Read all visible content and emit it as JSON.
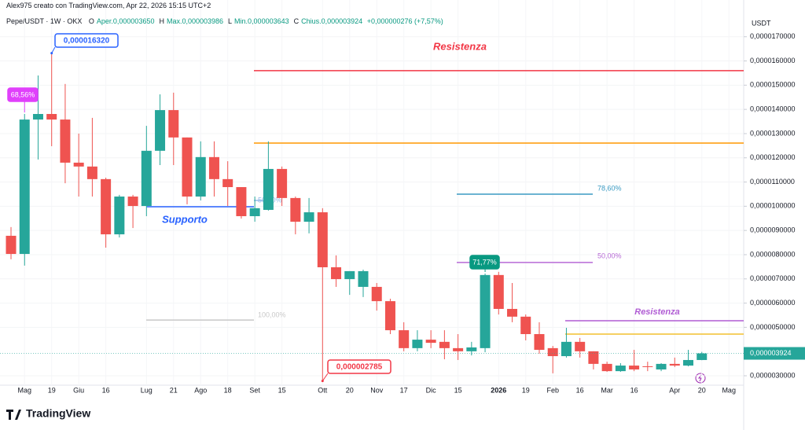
{
  "header": {
    "credit": "Alex975 creato con TradingView.com, Apr 22, 2026 15:15 UTC+2",
    "symbol": "Pepe/USDT · 1W · OKX",
    "ohlc": [
      {
        "key": "O",
        "text": "Aper.0,000003650"
      },
      {
        "key": "H",
        "text": "Max.0,000003986"
      },
      {
        "key": "L",
        "text": "Min.0,000003643"
      },
      {
        "key": "C",
        "text": "Chius.0,000003924"
      }
    ],
    "change": "+0,000000276 (+7,57%)"
  },
  "logo": "TradingView",
  "chart_data": {
    "type": "candlestick",
    "y_axis_label": "USDT",
    "up_color": "#26a69a",
    "down_color": "#ef5350",
    "categories": [
      null,
      "Mag",
      null,
      "19",
      null,
      "Giu",
      null,
      "16",
      null,
      null,
      "Lug",
      null,
      "21",
      null,
      "Ago",
      null,
      "18",
      null,
      "Set",
      null,
      "15",
      null,
      null,
      "Ott",
      null,
      "20",
      null,
      "Nov",
      null,
      "17",
      null,
      "Dic",
      null,
      "15",
      null,
      null,
      "2026",
      null,
      "19",
      null,
      "Feb",
      null,
      "16",
      null,
      "Mar",
      null,
      "16",
      null,
      null,
      "Apr",
      null,
      "20",
      null,
      "Mag"
    ],
    "open": [
      8.78e-06,
      8.03e-06,
      1.358e-05,
      1.381e-05,
      1.358e-05,
      1.18e-05,
      1.164e-05,
      1.112e-05,
      8.84e-06,
      1.04e-05,
      1.001e-05,
      1.229e-05,
      1.397e-05,
      1.284e-05,
      1.04e-05,
      1.203e-05,
      1.112e-05,
      1.079e-05,
      9.59e-06,
      9.85e-06,
      1.154e-05,
      1.034e-05,
      9.36e-06,
      9.75e-06,
      7.48e-06,
      6.99e-06,
      6.67e-06,
      6.67e-06,
      6.08e-06,
      4.88e-06,
      4.14e-06,
      4.49e-06,
      4.4e-06,
      4.14e-06,
      4.01e-06,
      4.14e-06,
      7.16e-06,
      5.76e-06,
      5.44e-06,
      4.72e-06,
      4.14e-06,
      3.81e-06,
      4.4e-06,
      4.01e-06,
      3.49e-06,
      3.19e-06,
      3.42e-06,
      3.39e-06,
      3.26e-06,
      3.49e-06,
      3.42e-06,
      3.65e-06,
      null,
      null
    ],
    "high": [
      9.14e-06,
      1.381e-05,
      1.54e-05,
      1.632e-05,
      1.505e-05,
      1.3e-05,
      1.365e-05,
      1.118e-05,
      1.047e-05,
      1.047e-05,
      1.332e-05,
      1.462e-05,
      1.469e-05,
      1.284e-05,
      1.268e-05,
      1.268e-05,
      1.186e-05,
      1.079e-05,
      1.04e-05,
      1.268e-05,
      1.164e-05,
      1.04e-05,
      1.034e-05,
      9.92e-06,
      7.97e-06,
      7.32e-06,
      7.38e-06,
      6.83e-06,
      6.18e-06,
      5.21e-06,
      4.88e-06,
      4.88e-06,
      4.88e-06,
      4.72e-06,
      4.4e-06,
      7.22e-06,
      7.29e-06,
      6.83e-06,
      5.53e-06,
      5.21e-06,
      4.23e-06,
      4.98e-06,
      4.56e-06,
      4.01e-06,
      3.58e-06,
      3.52e-06,
      4.07e-06,
      3.58e-06,
      3.52e-06,
      3.75e-06,
      4.07e-06,
      3.986e-06,
      null,
      null
    ],
    "low": [
      7.81e-06,
      7.55e-06,
      1.193e-05,
      1.248e-05,
      1.095e-05,
      1.04e-05,
      1.04e-05,
      8.29e-06,
      8.71e-06,
      9.1e-06,
      9.59e-06,
      1.17e-05,
      1.17e-05,
      1.008e-05,
      1.024e-05,
      1.04e-05,
      1.001e-05,
      9.49e-06,
      9.36e-06,
      9.82e-06,
      1.001e-05,
      8.84e-06,
      8.88e-06,
      2.785e-06,
      6.67e-06,
      6.34e-06,
      6.25e-06,
      5.69e-06,
      4.72e-06,
      4.01e-06,
      4.01e-06,
      4.14e-06,
      3.68e-06,
      3.65e-06,
      3.84e-06,
      3.97e-06,
      5.53e-06,
      5.21e-06,
      4.46e-06,
      3.91e-06,
      3.1e-06,
      3.75e-06,
      3.75e-06,
      3.26e-06,
      3.16e-06,
      3.16e-06,
      3.19e-06,
      3.19e-06,
      3.19e-06,
      3.36e-06,
      3.39e-06,
      3.643e-06,
      null,
      null
    ],
    "close": [
      8.03e-06,
      1.358e-05,
      1.381e-05,
      1.358e-05,
      1.18e-05,
      1.164e-05,
      1.112e-05,
      8.84e-06,
      1.04e-05,
      1.001e-05,
      1.229e-05,
      1.397e-05,
      1.284e-05,
      1.04e-05,
      1.203e-05,
      1.112e-05,
      1.079e-05,
      9.59e-06,
      9.92e-06,
      1.154e-05,
      1.034e-05,
      9.36e-06,
      9.75e-06,
      7.48e-06,
      6.99e-06,
      7.32e-06,
      7.32e-06,
      6.08e-06,
      4.88e-06,
      4.14e-06,
      4.49e-06,
      4.36e-06,
      4.14e-06,
      4.01e-06,
      4.17e-06,
      7.16e-06,
      5.76e-06,
      5.44e-06,
      4.72e-06,
      4.07e-06,
      3.81e-06,
      4.4e-06,
      4.01e-06,
      3.49e-06,
      3.19e-06,
      3.42e-06,
      3.26e-06,
      3.36e-06,
      3.49e-06,
      3.42e-06,
      3.65e-06,
      3.924e-06,
      null,
      null
    ],
    "ylim": [
      2.61e-06,
      1.803e-05
    ],
    "yticks": [
      {
        "value": 3e-06,
        "label": "0,0000030000"
      },
      {
        "value": 5e-06,
        "label": "0,0000050000"
      },
      {
        "value": 6e-06,
        "label": "0,0000060000"
      },
      {
        "value": 7e-06,
        "label": "0,0000070000"
      },
      {
        "value": 8e-06,
        "label": "0,0000080000"
      },
      {
        "value": 9e-06,
        "label": "0,0000090000"
      },
      {
        "value": 1e-05,
        "label": "0,0000100000"
      },
      {
        "value": 1.1e-05,
        "label": "0,0000110000"
      },
      {
        "value": 1.2e-05,
        "label": "0,0000120000"
      },
      {
        "value": 1.3e-05,
        "label": "0,0000130000"
      },
      {
        "value": 1.4e-05,
        "label": "0,0000140000"
      },
      {
        "value": 1.5e-05,
        "label": "0,0000150000"
      },
      {
        "value": 1.6e-05,
        "label": "0,0000160000"
      },
      {
        "value": 1.7e-05,
        "label": "0,0000170000"
      }
    ],
    "grid": true,
    "last_price": {
      "value": 3.924e-06,
      "label": "0,000003924"
    },
    "lines": [
      {
        "value": 1.56e-05,
        "color": "#f23645",
        "label": "Resistenza"
      },
      {
        "value": 1.261e-05,
        "color": "#ff9800"
      },
      {
        "value": 9.98e-06,
        "color": "#2962ff",
        "label": "Supporto"
      },
      {
        "value": 1.05e-05,
        "color": "#3a9ac2",
        "label": "78,60%"
      },
      {
        "value": 7.68e-06,
        "color": "#b76ad6",
        "label": "50,00%"
      },
      {
        "value": 5.3e-06,
        "color": "#c8c8c8",
        "label": "100,00%"
      },
      {
        "value": 1.024e-05,
        "color": "#8fb8e8",
        "label": "50,00%"
      },
      {
        "value": 5.27e-06,
        "color": "#b05cd4",
        "label": "Resistenza"
      },
      {
        "value": 4.72e-06,
        "color": "#f2c12e"
      }
    ],
    "callouts": [
      {
        "label": "0,000016320",
        "value": 1.632e-05,
        "color": "#2962ff"
      },
      {
        "label": "0,000002785",
        "value": 2.785e-06,
        "color": "#f23645"
      },
      {
        "label": "68,56%",
        "color": "#e040fb"
      },
      {
        "label": "71,77%",
        "color": "#089981"
      }
    ]
  }
}
